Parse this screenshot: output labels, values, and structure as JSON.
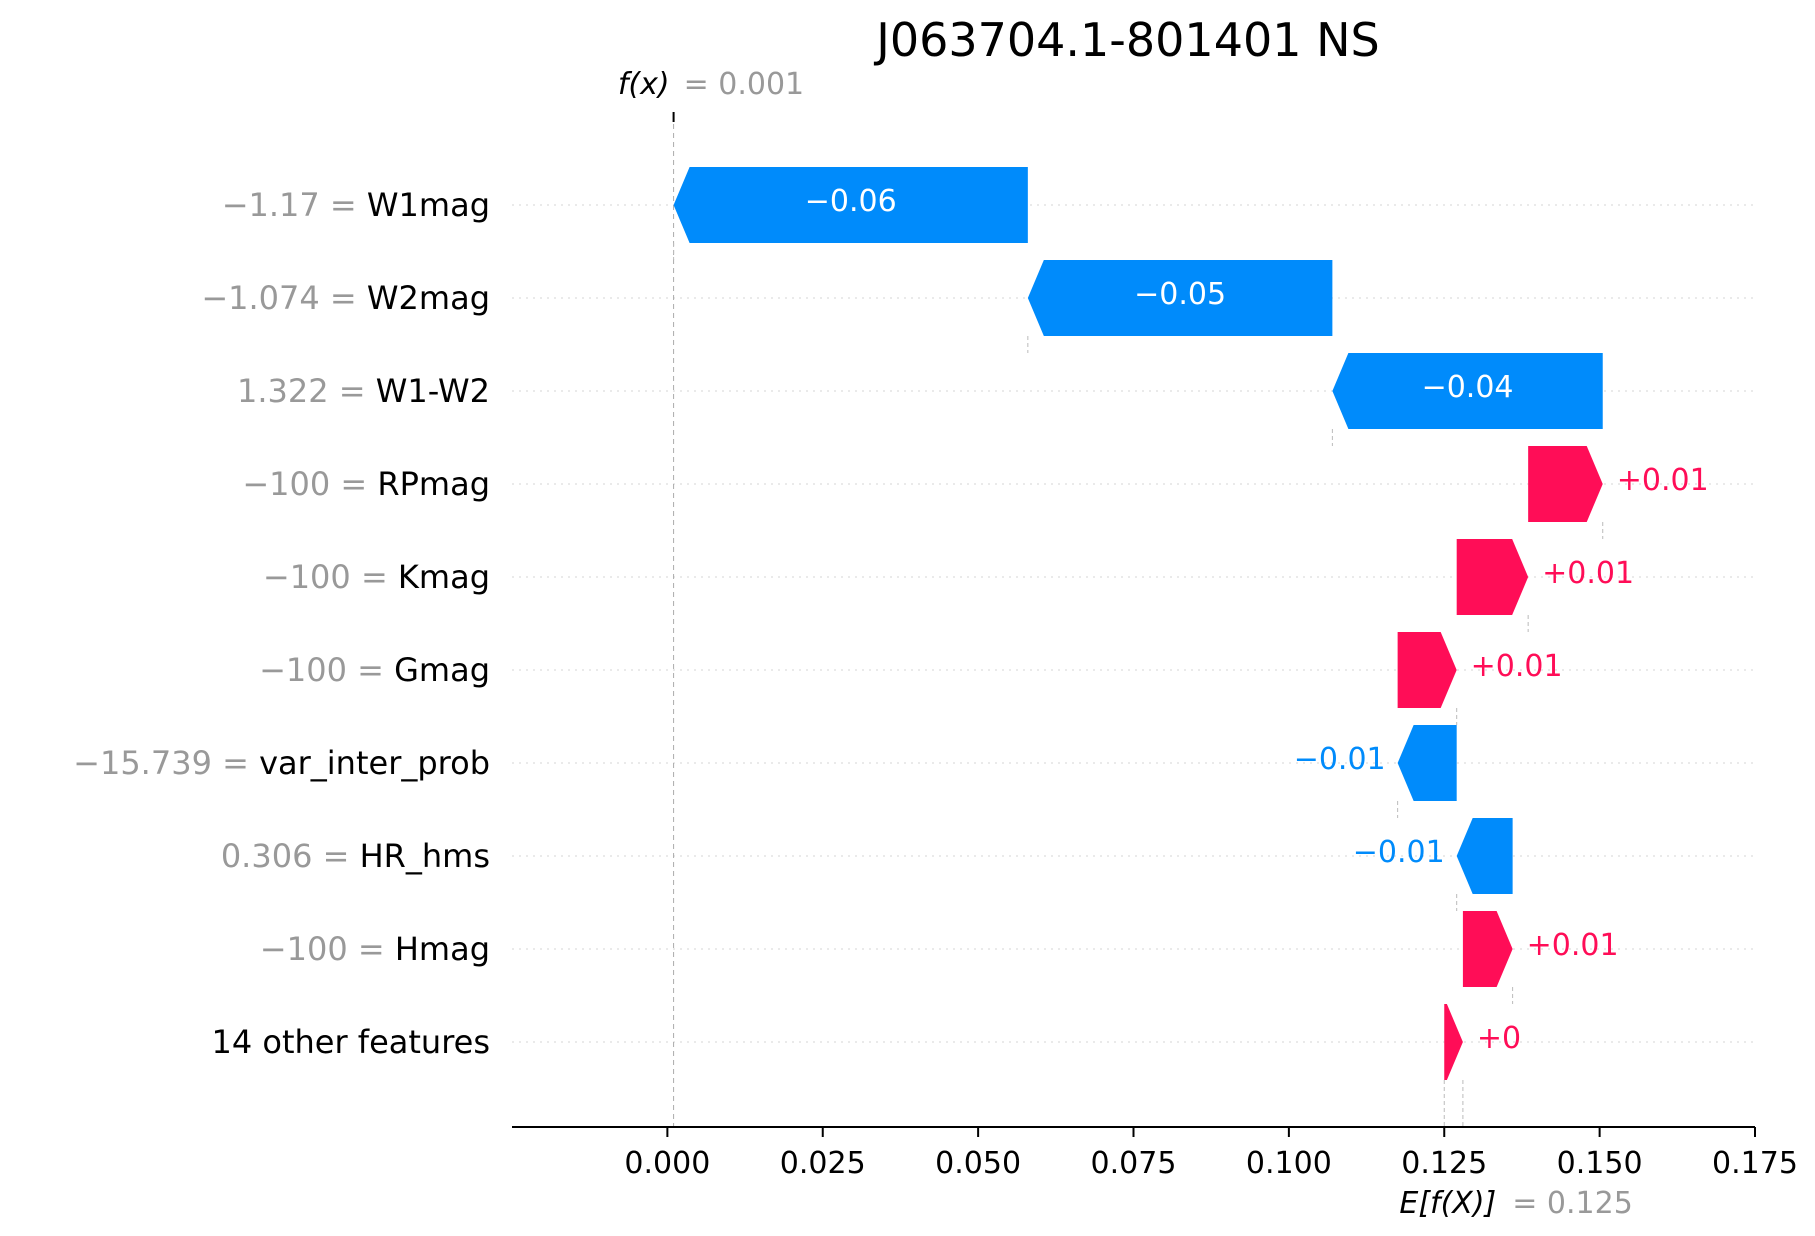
{
  "chart_data": {
    "type": "waterfall",
    "title": "J063704.1-801401 NS",
    "fx_label": "f(x)",
    "fx_value": 0.001,
    "fx_value_text": "= 0.001",
    "efx_label": "E[f(X)]",
    "efx_value": 0.125,
    "efx_value_text": "= 0.125",
    "xlim": [
      -0.025,
      0.175
    ],
    "xticks": [
      0.0,
      0.025,
      0.05,
      0.075,
      0.1,
      0.125,
      0.15,
      0.175
    ],
    "xtick_labels": [
      "0.000",
      "0.025",
      "0.050",
      "0.075",
      "0.100",
      "0.125",
      "0.150",
      "0.175"
    ],
    "colors": {
      "positive": "#ff0d57",
      "negative": "#008bfb",
      "value_text": "#999999"
    },
    "features": [
      {
        "value": "−1.17 =",
        "name": "W1mag",
        "start": 0.058,
        "end": 0.001,
        "label": "−0.06"
      },
      {
        "value": "−1.074 =",
        "name": "W2mag",
        "start": 0.107,
        "end": 0.058,
        "label": "−0.05"
      },
      {
        "value": "1.322 =",
        "name": "W1-W2",
        "start": 0.1505,
        "end": 0.107,
        "label": "−0.04"
      },
      {
        "value": "−100 =",
        "name": "RPmag",
        "start": 0.1385,
        "end": 0.1505,
        "label": "+0.01"
      },
      {
        "value": "−100 =",
        "name": "Kmag",
        "start": 0.127,
        "end": 0.1385,
        "label": "+0.01"
      },
      {
        "value": "−100 =",
        "name": "Gmag",
        "start": 0.1175,
        "end": 0.127,
        "label": "+0.01"
      },
      {
        "value": "−15.739 =",
        "name": "var_inter_prob",
        "start": 0.127,
        "end": 0.1175,
        "label": "−0.01"
      },
      {
        "value": "0.306 =",
        "name": "HR_hms",
        "start": 0.136,
        "end": 0.127,
        "label": "−0.01"
      },
      {
        "value": "−100 =",
        "name": "Hmag",
        "start": 0.128,
        "end": 0.136,
        "label": "+0.01"
      },
      {
        "value": "",
        "name": "14 other features",
        "start": 0.125,
        "end": 0.128,
        "label": "+0"
      }
    ]
  }
}
